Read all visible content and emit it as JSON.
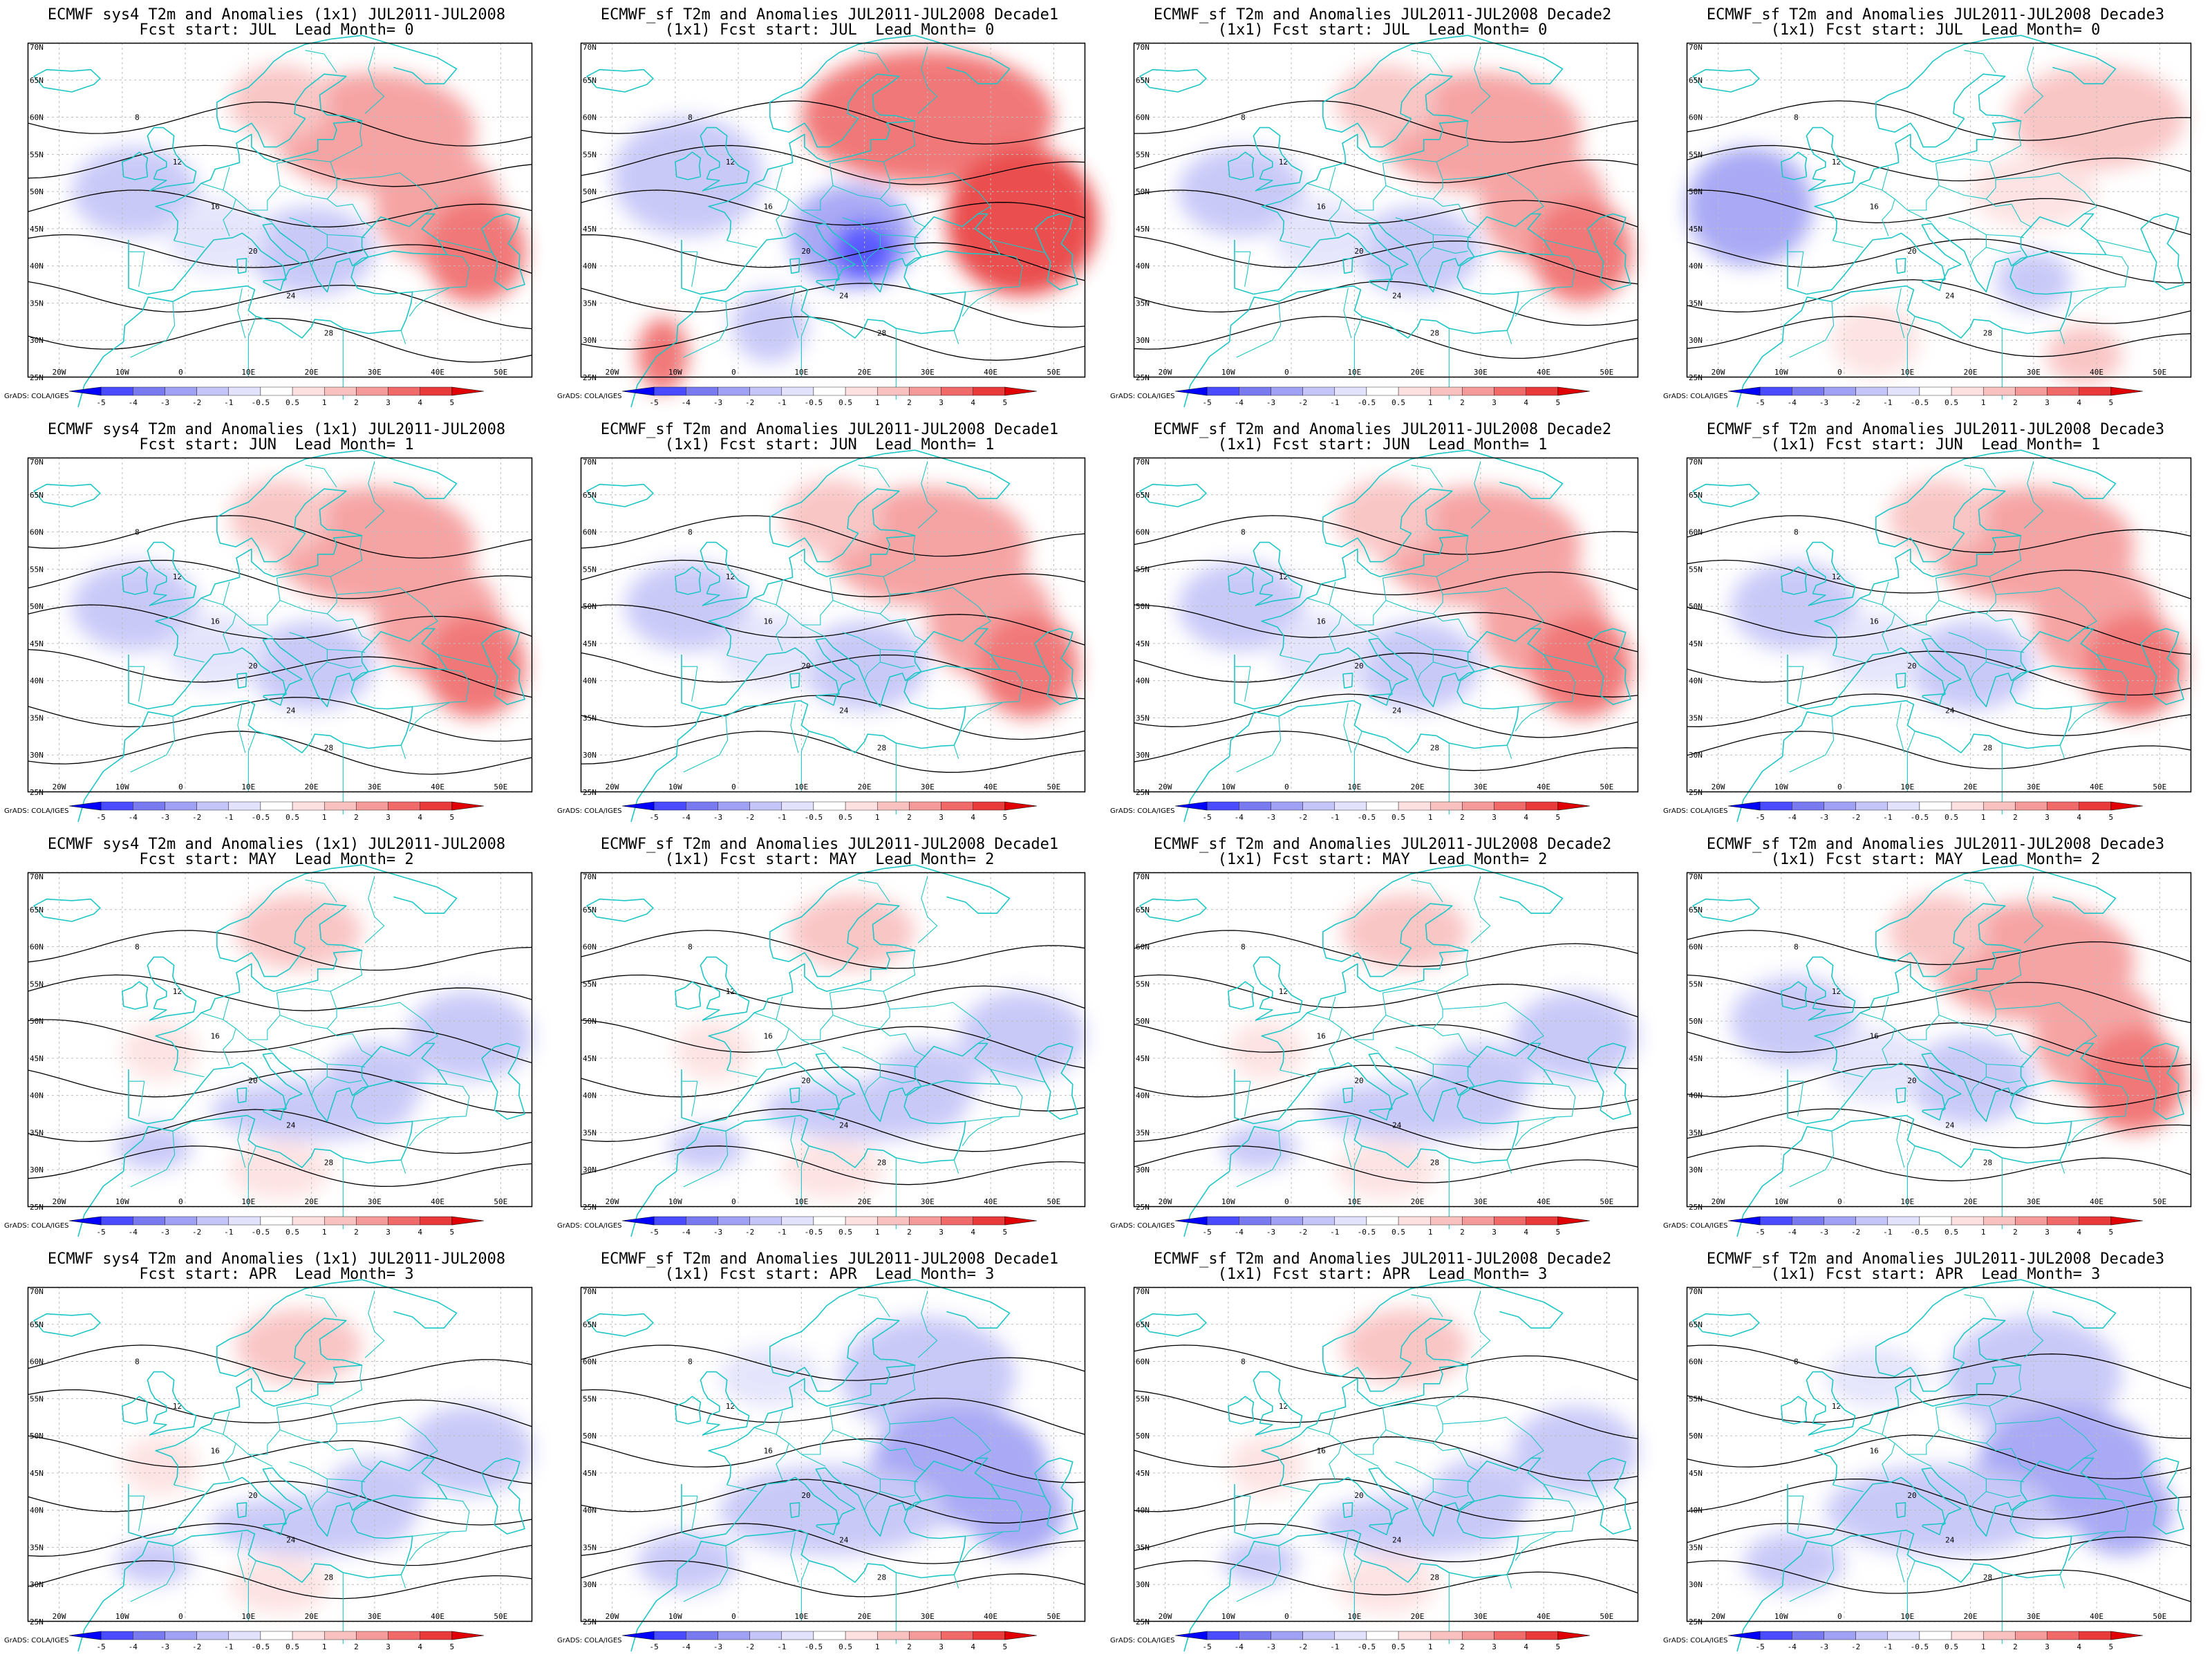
{
  "rows": [
    {
      "fcst_start": "Fcst start: JUL  Lead Month= 0"
    },
    {
      "fcst_start": "Fcst start: JUN  Lead Month= 1"
    },
    {
      "fcst_start": "Fcst start: MAY  Lead Month= 2"
    },
    {
      "fcst_start": "Fcst start: APR  Lead Month= 3"
    }
  ],
  "columns": [
    {
      "title": "ECMWF sys4 T2m and Anomalies (1x1) JUL2011-JUL2008",
      "res_prefix": ""
    },
    {
      "title": "ECMWF_sf T2m and Anomalies JUL2011-JUL2008 Decade1",
      "res_prefix": "(1x1) "
    },
    {
      "title": "ECMWF_sf T2m and Anomalies JUL2011-JUL2008 Decade2",
      "res_prefix": "(1x1) "
    },
    {
      "title": "ECMWF_sf T2m and Anomalies JUL2011-JUL2008 Decade3",
      "res_prefix": "(1x1) "
    }
  ],
  "map": {
    "lon_range": [
      -25,
      55
    ],
    "lat_range": [
      25,
      70
    ],
    "lon_ticks": [
      "20W",
      "10W",
      "0",
      "10E",
      "20E",
      "30E",
      "40E",
      "50E"
    ],
    "lon_tick_values": [
      -20,
      -10,
      0,
      10,
      20,
      30,
      40,
      50
    ],
    "lat_ticks": [
      "25N",
      "30N",
      "35N",
      "40N",
      "45N",
      "50N",
      "55N",
      "60N",
      "65N",
      "70N"
    ],
    "lat_tick_values": [
      25,
      30,
      35,
      40,
      45,
      50,
      55,
      60,
      65,
      70
    ],
    "gridlines": "dashed",
    "coast_color": "#1fc6c6",
    "contour_color": "#000000",
    "contour_labels": [
      "8",
      "12",
      "16",
      "20",
      "24",
      "28"
    ]
  },
  "colorbar": {
    "labels": [
      "-5",
      "-4",
      "-3",
      "-2",
      "-1",
      "-0.5",
      "0.5",
      "1",
      "2",
      "3",
      "4",
      "5"
    ],
    "colors": [
      "#0000ff",
      "#4a4aff",
      "#7a7af0",
      "#a0a0f4",
      "#c4c4f8",
      "#e2e2fc",
      "#ffffff",
      "#fde0e0",
      "#f9c0c0",
      "#f59a9a",
      "#f06a6a",
      "#e83a3a",
      "#e00000"
    ],
    "credit": "GrADS: COLA/IGES"
  },
  "anomaly_pattern": [
    [
      "warm",
      "warm-strong",
      "warm",
      "mixed"
    ],
    [
      "warm",
      "warm",
      "warm",
      "warm"
    ],
    [
      "cool",
      "cool",
      "cool",
      "warm"
    ],
    [
      "cool",
      "cool",
      "cool",
      "cool"
    ]
  ]
}
